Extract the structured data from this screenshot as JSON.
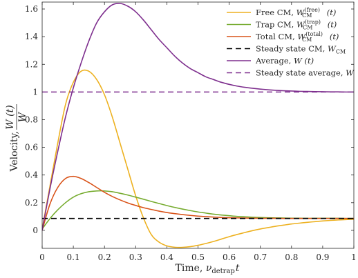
{
  "chart_data": {
    "type": "line",
    "xlabel": {
      "prefix": "Time, ",
      "nu": "ν",
      "sub": "detrap",
      "var": "t"
    },
    "ylabel": {
      "prefix": "Velocity, ",
      "num": "W (t)",
      "den": "W"
    },
    "xlim": [
      0,
      1
    ],
    "ylim": [
      -0.13,
      1.65
    ],
    "xticks": [
      0,
      0.1,
      0.2,
      0.3,
      0.4,
      0.5,
      0.6,
      0.7,
      0.8,
      0.9,
      1
    ],
    "xtick_labels": [
      "0",
      "0.1",
      "0.2",
      "0.3",
      "0.4",
      "0.5",
      "0.6",
      "0.7",
      "0.8",
      "0.9",
      "1"
    ],
    "yticks": [
      0,
      0.2,
      0.4,
      0.6,
      0.8,
      1,
      1.2,
      1.4,
      1.6
    ],
    "ytick_labels": [
      "0",
      "0.2",
      "0.4",
      "0.6",
      "0.8",
      "1",
      "1.2",
      "1.4",
      "1.6"
    ],
    "legend_position": "top-right",
    "x": [
      0,
      0.025,
      0.05,
      0.075,
      0.1,
      0.125,
      0.15,
      0.175,
      0.2,
      0.225,
      0.25,
      0.275,
      0.3,
      0.325,
      0.35,
      0.375,
      0.4,
      0.425,
      0.45,
      0.475,
      0.5,
      0.525,
      0.55,
      0.575,
      0.6,
      0.625,
      0.65,
      0.675,
      0.7,
      0.725,
      0.75,
      0.775,
      0.8,
      0.825,
      0.85,
      0.875,
      0.9,
      0.925,
      0.95,
      0.975,
      1
    ],
    "series": [
      {
        "key": "free_cm",
        "name": "Free CM, ",
        "math": "W",
        "sub": "CM",
        "sup": "(free)",
        "arg": " (t)",
        "color": "#EDB120",
        "dash": "solid",
        "values": [
          0.01,
          0.32,
          0.63,
          0.91,
          1.07,
          1.15,
          1.15,
          1.09,
          0.98,
          0.82,
          0.63,
          0.44,
          0.25,
          0.09,
          -0.03,
          -0.085,
          -0.112,
          -0.122,
          -0.123,
          -0.118,
          -0.108,
          -0.095,
          -0.08,
          -0.063,
          -0.046,
          -0.03,
          -0.016,
          -0.002,
          0.01,
          0.02,
          0.03,
          0.038,
          0.046,
          0.052,
          0.058,
          0.063,
          0.068,
          0.072,
          0.075,
          0.078,
          0.08
        ]
      },
      {
        "key": "trap_cm",
        "name": "Trap CM, ",
        "math": "W",
        "sub": "CM",
        "sup": "(trap)",
        "arg": " (t)",
        "color": "#77AC30",
        "dash": "solid",
        "values": [
          0.01,
          0.085,
          0.148,
          0.2,
          0.24,
          0.265,
          0.279,
          0.285,
          0.285,
          0.279,
          0.268,
          0.255,
          0.24,
          0.225,
          0.209,
          0.194,
          0.179,
          0.166,
          0.154,
          0.143,
          0.133,
          0.125,
          0.117,
          0.111,
          0.106,
          0.101,
          0.098,
          0.095,
          0.093,
          0.091,
          0.09,
          0.089,
          0.088,
          0.088,
          0.087,
          0.087,
          0.087,
          0.087,
          0.087,
          0.086,
          0.086
        ]
      },
      {
        "key": "total_cm",
        "name": "Total CM, ",
        "math": "W",
        "sub": "CM",
        "sup": "(total)",
        "arg": " (t)",
        "color": "#D95319",
        "dash": "solid",
        "values": [
          0.0,
          0.19,
          0.31,
          0.375,
          0.39,
          0.375,
          0.345,
          0.31,
          0.275,
          0.245,
          0.22,
          0.198,
          0.18,
          0.164,
          0.151,
          0.139,
          0.129,
          0.121,
          0.114,
          0.108,
          0.103,
          0.099,
          0.096,
          0.093,
          0.091,
          0.09,
          0.089,
          0.088,
          0.087,
          0.087,
          0.087,
          0.086,
          0.086,
          0.086,
          0.086,
          0.086,
          0.086,
          0.086,
          0.086,
          0.086,
          0.086
        ]
      },
      {
        "key": "steady_cm",
        "name": "Steady state CM, ",
        "math": "W",
        "sub": "CM",
        "sup": "",
        "arg": "",
        "color": "#000000",
        "dash": "dashed",
        "values": [
          0.086,
          0.086,
          0.086,
          0.086,
          0.086,
          0.086,
          0.086,
          0.086,
          0.086,
          0.086,
          0.086,
          0.086,
          0.086,
          0.086,
          0.086,
          0.086,
          0.086,
          0.086,
          0.086,
          0.086,
          0.086,
          0.086,
          0.086,
          0.086,
          0.086,
          0.086,
          0.086,
          0.086,
          0.086,
          0.086,
          0.086,
          0.086,
          0.086,
          0.086,
          0.086,
          0.086,
          0.086,
          0.086,
          0.086,
          0.086,
          0.086
        ]
      },
      {
        "key": "average",
        "name": "Average, ",
        "math": "W",
        "sub": "",
        "sup": "",
        "arg": " (t)",
        "color": "#7E2F8E",
        "dash": "solid",
        "values": [
          0.0,
          0.3,
          0.57,
          0.82,
          1.03,
          1.21,
          1.37,
          1.5,
          1.58,
          1.63,
          1.64,
          1.62,
          1.58,
          1.52,
          1.45,
          1.38,
          1.32,
          1.26,
          1.21,
          1.17,
          1.14,
          1.11,
          1.09,
          1.07,
          1.055,
          1.043,
          1.034,
          1.027,
          1.021,
          1.016,
          1.012,
          1.009,
          1.007,
          1.005,
          1.004,
          1.003,
          1.002,
          1.001,
          1.001,
          1.0,
          1.0
        ]
      },
      {
        "key": "steady_avg",
        "name": "Steady state average, ",
        "math": "W",
        "sub": "",
        "sup": "",
        "arg": "",
        "color": "#7E2F8E",
        "dash": "dashed",
        "values": [
          1,
          1,
          1,
          1,
          1,
          1,
          1,
          1,
          1,
          1,
          1,
          1,
          1,
          1,
          1,
          1,
          1,
          1,
          1,
          1,
          1,
          1,
          1,
          1,
          1,
          1,
          1,
          1,
          1,
          1,
          1,
          1,
          1,
          1,
          1,
          1,
          1,
          1,
          1,
          1,
          1
        ]
      }
    ]
  }
}
